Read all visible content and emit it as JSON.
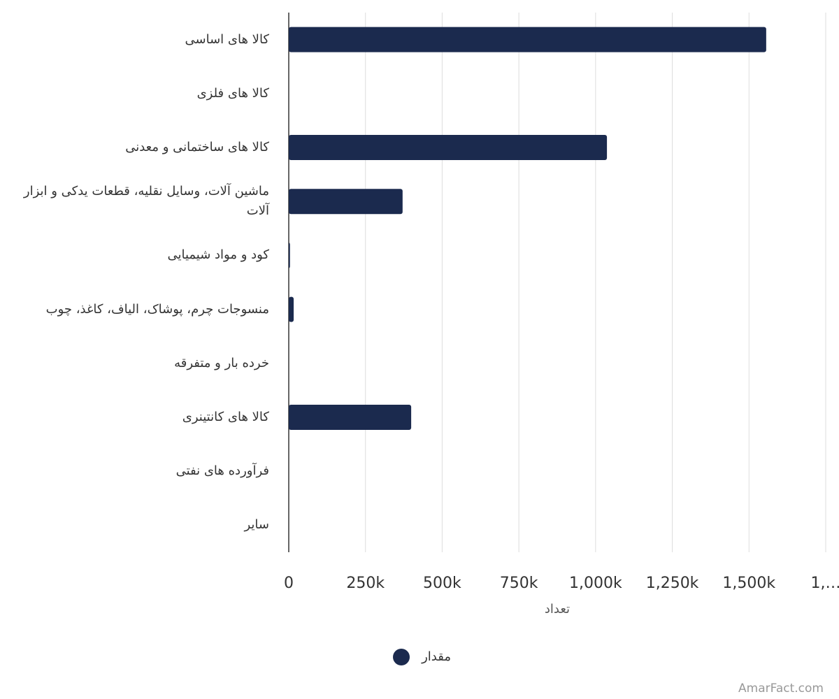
{
  "chart_data": {
    "type": "bar",
    "orientation": "horizontal",
    "categories": [
      "کالا های اساسی",
      "کالا های فلزی",
      "کالا های ساختمانی و معدنی",
      "ماشین آلات، وسایل نقلیه، قطعات یدکی و ابزار آلات",
      "کود و مواد شیمیایی",
      "منسوجات چرم، پوشاک، الیاف، کاغذ، چوب",
      "خرده بار و متفرقه",
      "کالا های کانتینری",
      "فرآورده های نفتی",
      "سایر"
    ],
    "series": [
      {
        "name": "مقدار",
        "color": "#1b2a4e",
        "values": [
          1556000,
          0,
          1037000,
          371000,
          4000,
          16000,
          0,
          399000,
          0,
          0
        ]
      }
    ],
    "xlabel": "تعداد",
    "xlim": [
      0,
      1750000
    ],
    "xticks": [
      0,
      {
        "value": 250000,
        "label": "250k"
      },
      {
        "value": 500000,
        "label": "500k"
      },
      {
        "value": 750000,
        "label": "750k"
      },
      {
        "value": 1000000,
        "label": "1,000k"
      },
      {
        "value": 1250000,
        "label": "1,250k"
      },
      {
        "value": 1500000,
        "label": "1,500k"
      },
      {
        "value": 1750000,
        "label": "1,…"
      }
    ],
    "grid": true,
    "legend": "bottom"
  },
  "watermark": "AmarFact.com"
}
